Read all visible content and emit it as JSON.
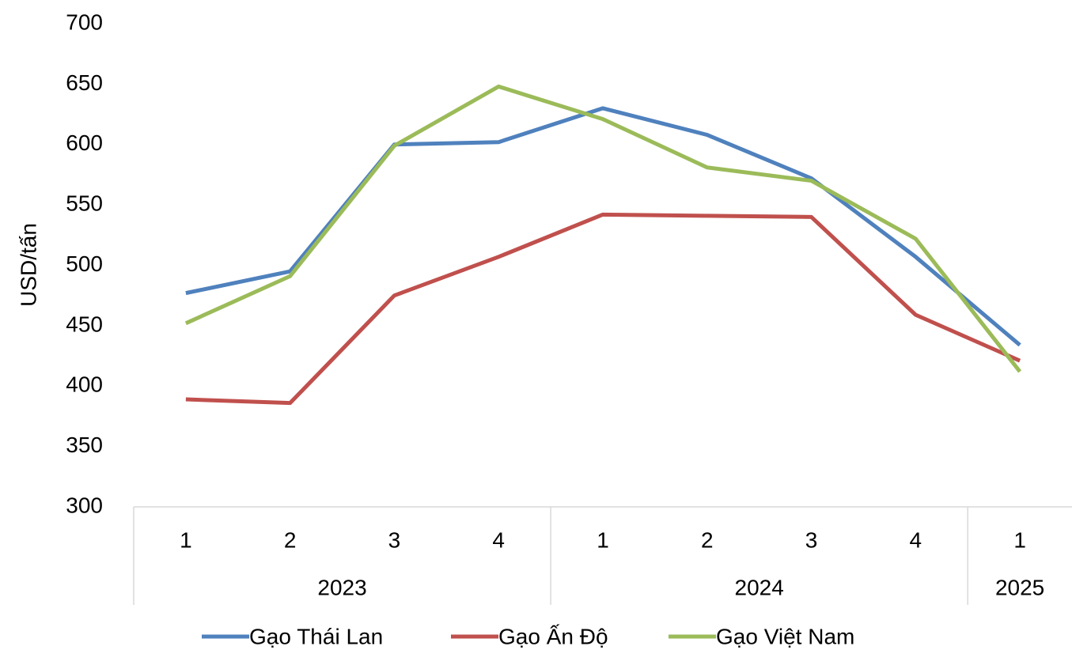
{
  "chart_data": {
    "type": "line",
    "y_label": "USD/tấn",
    "categories": [
      "1",
      "2",
      "3",
      "4",
      "1",
      "2",
      "3",
      "4",
      "1"
    ],
    "groups": [
      {
        "name": "2023",
        "count": 4
      },
      {
        "name": "2024",
        "count": 4
      },
      {
        "name": "2025",
        "count": 1
      }
    ],
    "series": [
      {
        "name": "Gạo Thái Lan",
        "color": "#4f81bd",
        "values": [
          477,
          495,
          600,
          602,
          630,
          608,
          572,
          507,
          434
        ]
      },
      {
        "name": "Gạo Ấn Độ",
        "color": "#c0504d",
        "values": [
          389,
          386,
          475,
          507,
          542,
          541,
          540,
          459,
          421
        ]
      },
      {
        "name": "Gạo Việt Nam",
        "color": "#9bbb59",
        "values": [
          452,
          491,
          599,
          648,
          621,
          581,
          570,
          522,
          412
        ]
      }
    ],
    "ylim": [
      300,
      700
    ],
    "yticks": [
      300,
      350,
      400,
      450,
      500,
      550,
      600,
      650,
      700
    ],
    "grid": false
  }
}
